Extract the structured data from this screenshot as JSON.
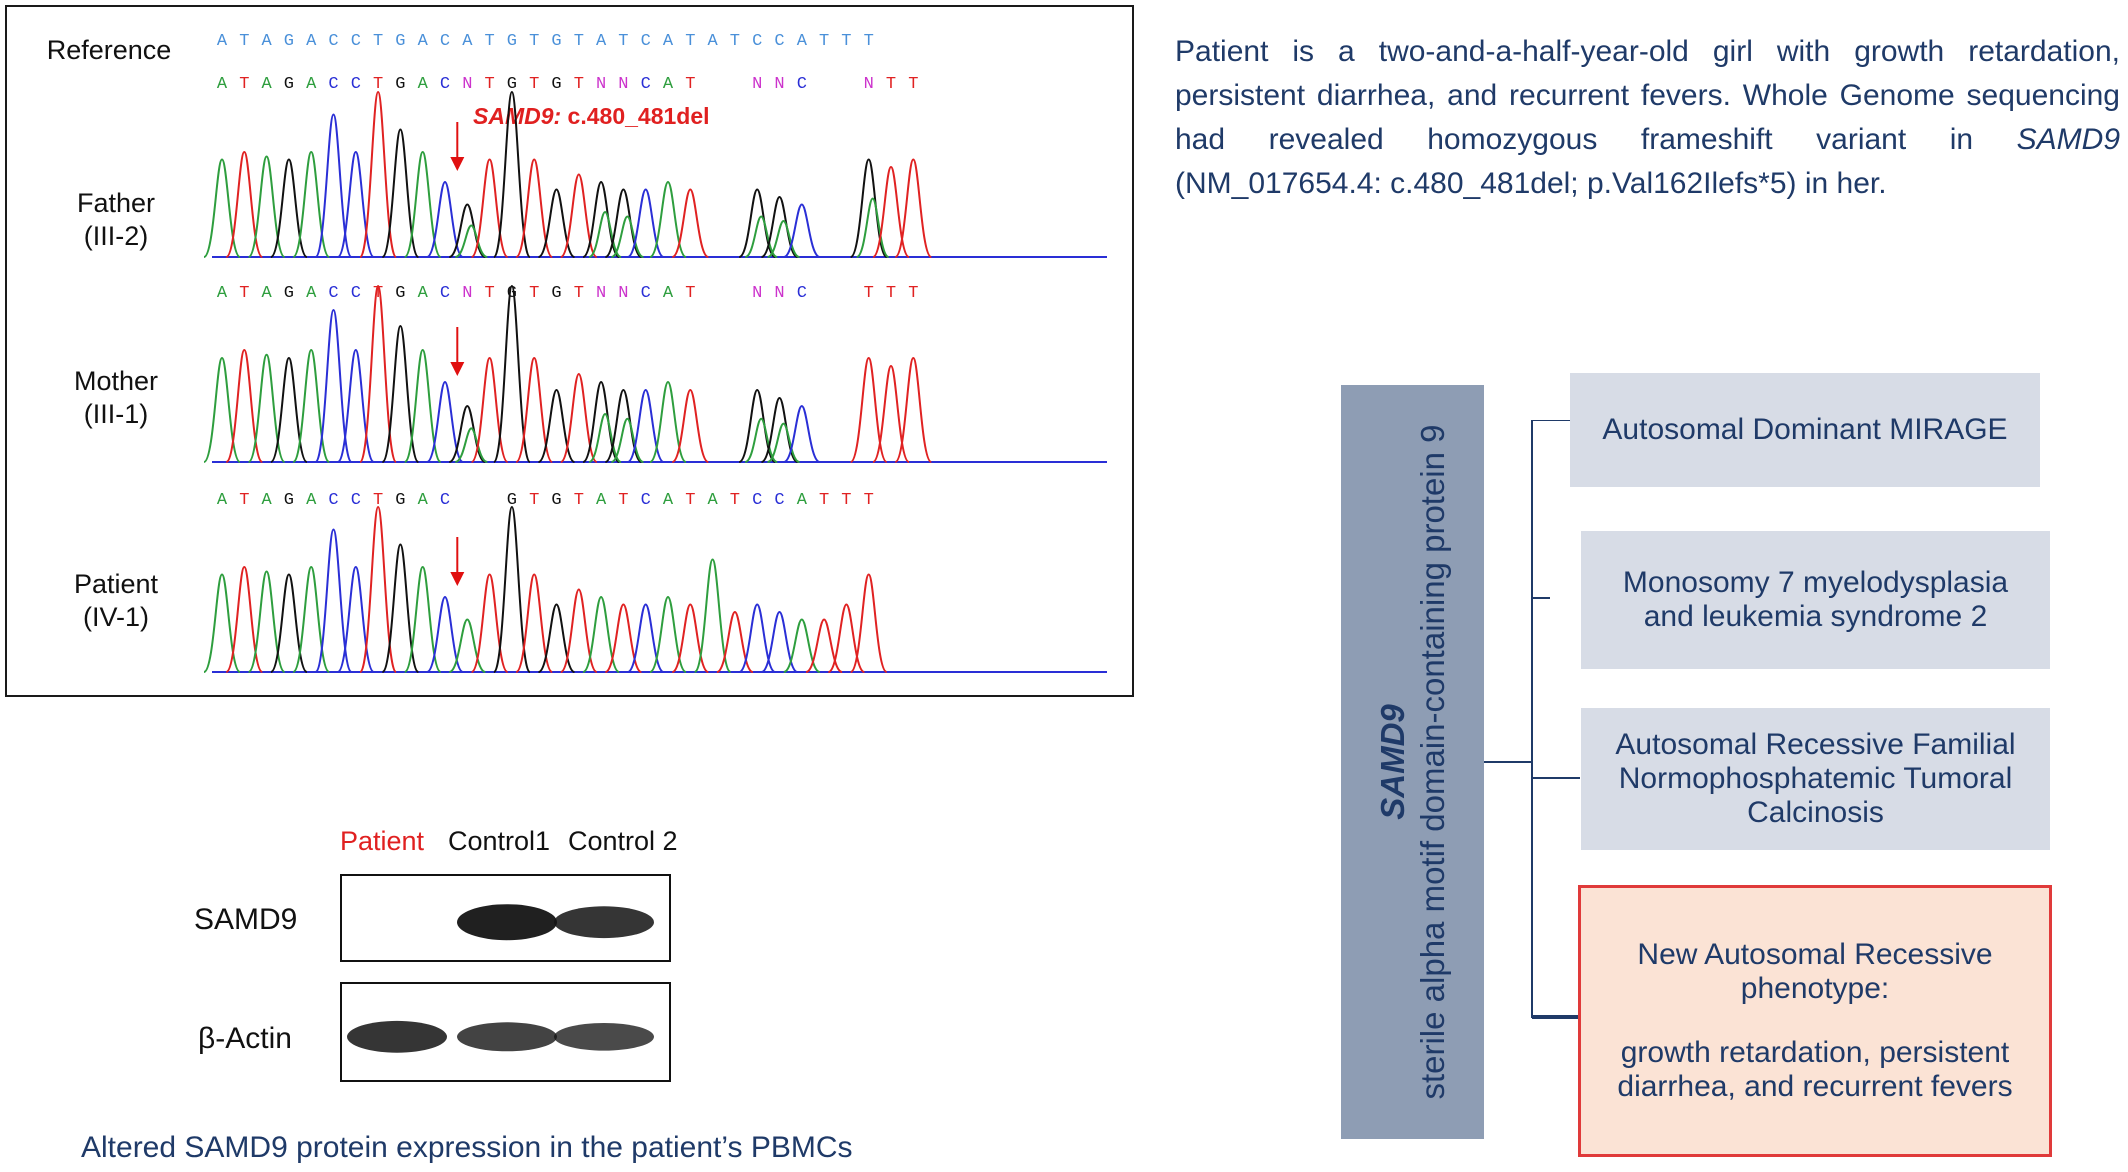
{
  "colors": {
    "A": "#2e9e3e",
    "C": "#2a2fd6",
    "G": "#111111",
    "T": "#e02222",
    "N": "#cc33cc",
    "arrow": "#e01010",
    "text_blue": "#1f3a68",
    "gene_box": "#8e9db4",
    "pheno_box": "#d7dce6",
    "new_pheno_fill": "#fbe3d5",
    "new_pheno_border": "#e03a3a"
  },
  "chromatogram": {
    "reference_label": "Reference",
    "reference_seq": "ATAGACCTGACATGTGTATCATATCCATTT",
    "variant_label_gene": "SAMD9:",
    "variant_label_change": " c.480_481del",
    "rows": [
      {
        "label1": "Father",
        "label2": "(III-2)",
        "seq": "ATAGACCTGACNTGTGTNNCAT  NNC  NTT"
      },
      {
        "label1": "Mother",
        "label2": "(III-1)",
        "seq": "ATAGACCTGACNTGTGTNNCAT  NNC  TTT"
      },
      {
        "label1": "Patient",
        "label2": "(IV-1)",
        "seq": "ATAGACCTGAC  GTGTATCATATCCATTT"
      }
    ]
  },
  "western_blot": {
    "lanes": [
      "Patient",
      "Control1",
      "Control 2"
    ],
    "patient_lane_color": "#e02020",
    "rows": [
      {
        "label": "SAMD9",
        "band_intensity": [
          0.0,
          1.0,
          0.85
        ]
      },
      {
        "label": "β-Actin",
        "band_intensity": [
          0.85,
          0.75,
          0.7
        ]
      }
    ],
    "caption": "Altered SAMD9 protein expression in the patient’s PBMCs"
  },
  "description": {
    "part1": "Patient is a two-and-a-half-year-old girl with growth retardation, persistent diarrhea, and recurrent fevers. Whole Genome sequencing had revealed homozygous frameshift variant in ",
    "gene": "SAMD9",
    "part2": " (NM_017654.4: c.480_481del; p.Val162Ilefs*5) in her."
  },
  "gene_box": {
    "symbol": "SAMD9",
    "name": "sterile alpha motif domain-containing protein 9"
  },
  "phenotypes": [
    {
      "text": "Autosomal Dominant MIRAGE"
    },
    {
      "text": "Monosomy 7 myelodysplasia and leukemia syndrome 2"
    },
    {
      "text": "Autosomal Recessive Familial Normophosphatemic Tumoral Calcinosis"
    }
  ],
  "new_phenotype": {
    "title": "New Autosomal Recessive phenotype:",
    "detail": "growth retardation, persistent diarrhea, and recurrent fevers"
  }
}
